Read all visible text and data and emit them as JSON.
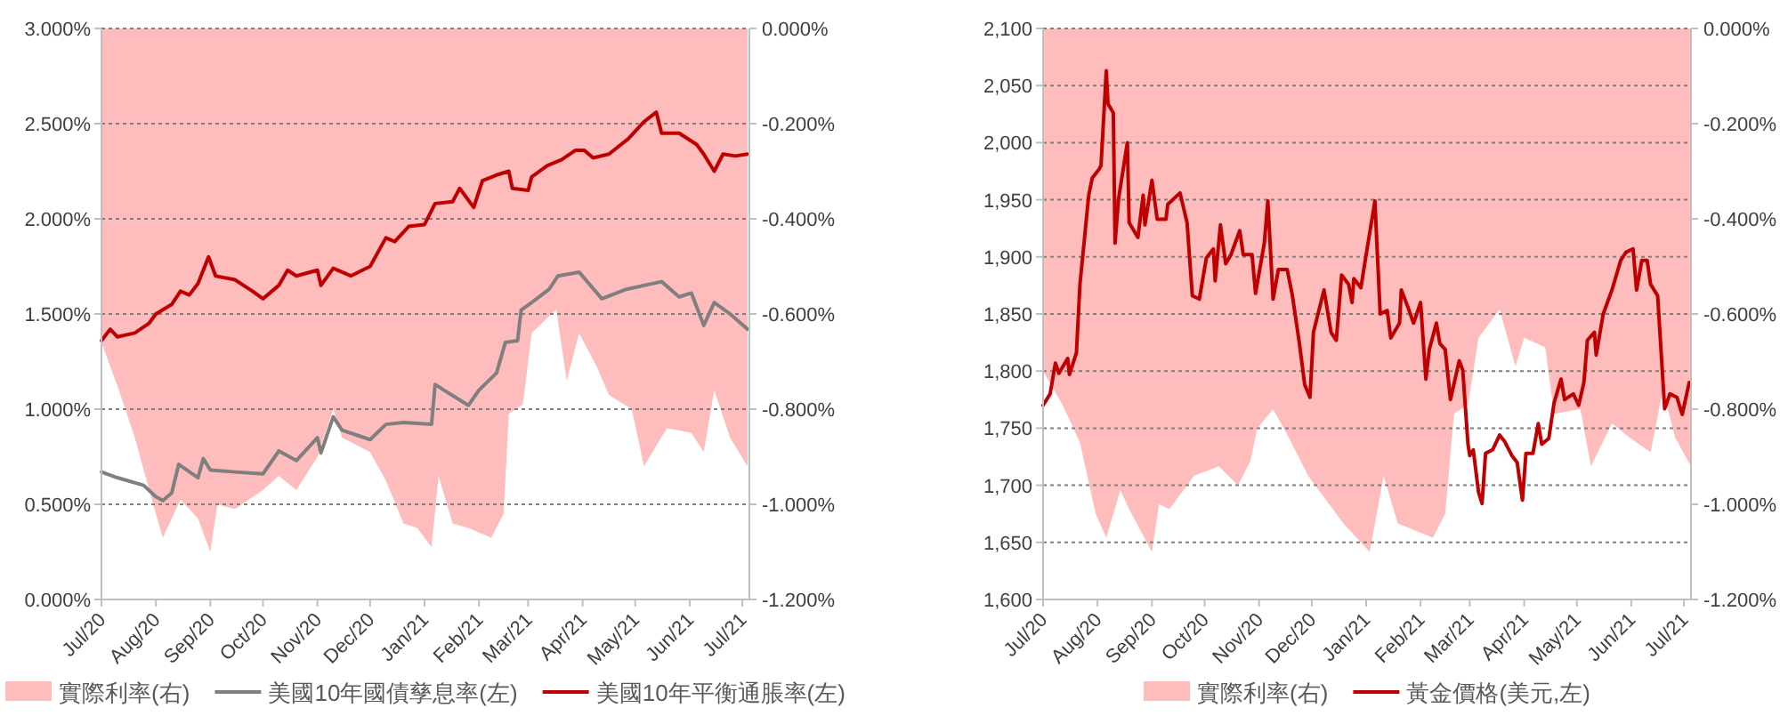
{
  "chart_data": [
    {
      "type": "line",
      "xlim": [
        "2020-07-01",
        "2021-07-05"
      ],
      "xticks": [
        {
          "value": "2020-07-01",
          "label": "Jul/20"
        },
        {
          "value": "2020-08-01",
          "label": "Aug/20"
        },
        {
          "value": "2020-09-01",
          "label": "Sep/20"
        },
        {
          "value": "2020-10-01",
          "label": "Oct/20"
        },
        {
          "value": "2020-11-01",
          "label": "Nov/20"
        },
        {
          "value": "2020-12-01",
          "label": "Dec/20"
        },
        {
          "value": "2021-01-01",
          "label": "Jan/21"
        },
        {
          "value": "2021-02-01",
          "label": "Feb/21"
        },
        {
          "value": "2021-03-01",
          "label": "Mar/21"
        },
        {
          "value": "2021-04-01",
          "label": "Apr/21"
        },
        {
          "value": "2021-05-01",
          "label": "May/21"
        },
        {
          "value": "2021-06-01",
          "label": "Jun/21"
        },
        {
          "value": "2021-07-01",
          "label": "Jul/21"
        }
      ],
      "ylim": [
        0,
        3
      ],
      "yticks": [
        {
          "value": 0,
          "label": "0.000%"
        },
        {
          "value": 0.5,
          "label": "0.500%"
        },
        {
          "value": 1,
          "label": "1.000%"
        },
        {
          "value": 1.5,
          "label": "1.500%"
        },
        {
          "value": 2,
          "label": "2.000%"
        },
        {
          "value": 2.5,
          "label": "2.500%"
        },
        {
          "value": 3,
          "label": "3.000%"
        }
      ],
      "y2lim": [
        -1.2,
        0
      ],
      "y2ticks": [
        {
          "value": -1.2,
          "label": "-1.200%"
        },
        {
          "value": -1,
          "label": "-1.000%"
        },
        {
          "value": -0.8,
          "label": "-0.800%"
        },
        {
          "value": -0.6,
          "label": "-0.600%"
        },
        {
          "value": -0.4,
          "label": "-0.400%"
        },
        {
          "value": -0.2,
          "label": "-0.200%"
        },
        {
          "value": 0,
          "label": "0.000%"
        }
      ],
      "grid": "y",
      "legend": "bottom",
      "series": [
        {
          "name": "實際利率(右)",
          "type": "area",
          "axis": "y2",
          "color": "#ffbcbc",
          "x": [
            "2020-07-01",
            "2020-07-10",
            "2020-07-20",
            "2020-08-01",
            "2020-08-05",
            "2020-08-10",
            "2020-08-15",
            "2020-08-25",
            "2020-09-01",
            "2020-09-05",
            "2020-09-15",
            "2020-10-01",
            "2020-10-10",
            "2020-10-20",
            "2020-11-01",
            "2020-11-10",
            "2020-11-15",
            "2020-12-01",
            "2020-12-10",
            "2020-12-20",
            "2020-12-28",
            "2021-01-05",
            "2021-01-09",
            "2021-01-17",
            "2021-01-26",
            "2021-02-08",
            "2021-02-15",
            "2021-02-18",
            "2021-02-26",
            "2021-03-03",
            "2021-03-17",
            "2021-03-23",
            "2021-03-30",
            "2021-04-09",
            "2021-04-16",
            "2021-04-29",
            "2021-05-06",
            "2021-05-19",
            "2021-06-02",
            "2021-06-09",
            "2021-06-15",
            "2021-06-24",
            "2021-07-04"
          ],
          "values": [
            -0.66,
            -0.75,
            -0.86,
            -1.02,
            -1.07,
            -1.03,
            -0.99,
            -1.03,
            -1.1,
            -1.0,
            -1.01,
            -0.97,
            -0.94,
            -0.97,
            -0.9,
            -0.8,
            -0.86,
            -0.89,
            -0.95,
            -1.04,
            -1.05,
            -1.09,
            -0.94,
            -1.04,
            -1.05,
            -1.07,
            -1.02,
            -0.81,
            -0.79,
            -0.64,
            -0.59,
            -0.74,
            -0.64,
            -0.71,
            -0.77,
            -0.8,
            -0.92,
            -0.84,
            -0.85,
            -0.89,
            -0.76,
            -0.86,
            -0.92
          ]
        },
        {
          "name": "美國10年國債孳息率(左)",
          "type": "line",
          "color": "#7f7f7f",
          "x": [
            "2020-07-01",
            "2020-07-10",
            "2020-07-25",
            "2020-08-01",
            "2020-08-05",
            "2020-08-10",
            "2020-08-14",
            "2020-08-25",
            "2020-08-28",
            "2020-09-01",
            "2020-09-15",
            "2020-10-01",
            "2020-10-10",
            "2020-10-20",
            "2020-11-01",
            "2020-11-03",
            "2020-11-10",
            "2020-11-15",
            "2020-12-01",
            "2020-12-10",
            "2020-12-20",
            "2021-01-05",
            "2021-01-07",
            "2021-01-12",
            "2021-01-26",
            "2021-02-01",
            "2021-02-11",
            "2021-02-16",
            "2021-02-23",
            "2021-02-25",
            "2021-03-03",
            "2021-03-13",
            "2021-03-18",
            "2021-03-30",
            "2021-04-12",
            "2021-04-26",
            "2021-05-16",
            "2021-05-26",
            "2021-06-02",
            "2021-06-09",
            "2021-06-15",
            "2021-06-24",
            "2021-07-04"
          ],
          "values": [
            0.67,
            0.64,
            0.6,
            0.54,
            0.52,
            0.56,
            0.71,
            0.64,
            0.74,
            0.68,
            0.67,
            0.66,
            0.78,
            0.73,
            0.85,
            0.77,
            0.96,
            0.89,
            0.84,
            0.92,
            0.93,
            0.92,
            1.13,
            1.1,
            1.02,
            1.1,
            1.19,
            1.35,
            1.36,
            1.52,
            1.56,
            1.63,
            1.7,
            1.72,
            1.58,
            1.63,
            1.67,
            1.59,
            1.61,
            1.44,
            1.56,
            1.5,
            1.42
          ]
        },
        {
          "name": "美國10年平衡通脹率(左)",
          "type": "line",
          "color": "#c00000",
          "x": [
            "2020-07-01",
            "2020-07-06",
            "2020-07-10",
            "2020-07-20",
            "2020-07-28",
            "2020-08-01",
            "2020-08-10",
            "2020-08-15",
            "2020-08-20",
            "2020-08-25",
            "2020-08-31",
            "2020-09-04",
            "2020-09-15",
            "2020-09-25",
            "2020-10-01",
            "2020-10-10",
            "2020-10-15",
            "2020-10-20",
            "2020-11-01",
            "2020-11-03",
            "2020-11-10",
            "2020-11-20",
            "2020-12-01",
            "2020-12-10",
            "2020-12-15",
            "2020-12-23",
            "2021-01-01",
            "2021-01-07",
            "2021-01-17",
            "2021-01-21",
            "2021-01-29",
            "2021-02-03",
            "2021-02-11",
            "2021-02-18",
            "2021-02-20",
            "2021-03-01",
            "2021-03-03",
            "2021-03-12",
            "2021-03-20",
            "2021-03-28",
            "2021-04-02",
            "2021-04-07",
            "2021-04-16",
            "2021-04-27",
            "2021-05-06",
            "2021-05-13",
            "2021-05-16",
            "2021-05-26",
            "2021-06-05",
            "2021-06-09",
            "2021-06-15",
            "2021-06-20",
            "2021-06-27",
            "2021-07-04"
          ],
          "values": [
            1.36,
            1.42,
            1.38,
            1.4,
            1.45,
            1.5,
            1.55,
            1.62,
            1.6,
            1.66,
            1.8,
            1.7,
            1.68,
            1.62,
            1.58,
            1.65,
            1.73,
            1.7,
            1.73,
            1.65,
            1.74,
            1.7,
            1.75,
            1.9,
            1.88,
            1.96,
            1.97,
            2.08,
            2.09,
            2.16,
            2.06,
            2.2,
            2.23,
            2.25,
            2.16,
            2.15,
            2.22,
            2.28,
            2.31,
            2.36,
            2.36,
            2.32,
            2.34,
            2.42,
            2.51,
            2.56,
            2.45,
            2.45,
            2.39,
            2.34,
            2.25,
            2.34,
            2.33,
            2.34
          ]
        }
      ]
    },
    {
      "type": "line",
      "xlim": [
        "2020-07-01",
        "2021-07-05"
      ],
      "xticks": [
        {
          "value": "2020-07-01",
          "label": "Jul/20"
        },
        {
          "value": "2020-08-01",
          "label": "Aug/20"
        },
        {
          "value": "2020-09-01",
          "label": "Sep/20"
        },
        {
          "value": "2020-10-01",
          "label": "Oct/20"
        },
        {
          "value": "2020-11-01",
          "label": "Nov/20"
        },
        {
          "value": "2020-12-01",
          "label": "Dec/20"
        },
        {
          "value": "2021-01-01",
          "label": "Jan/21"
        },
        {
          "value": "2021-02-01",
          "label": "Feb/21"
        },
        {
          "value": "2021-03-01",
          "label": "Mar/21"
        },
        {
          "value": "2021-04-01",
          "label": "Apr/21"
        },
        {
          "value": "2021-05-01",
          "label": "May/21"
        },
        {
          "value": "2021-06-01",
          "label": "Jun/21"
        },
        {
          "value": "2021-07-01",
          "label": "Jul/21"
        }
      ],
      "ylim": [
        1600,
        2100
      ],
      "yticks": [
        {
          "value": 1600,
          "label": "1,600"
        },
        {
          "value": 1650,
          "label": "1,650"
        },
        {
          "value": 1700,
          "label": "1,700"
        },
        {
          "value": 1750,
          "label": "1,750"
        },
        {
          "value": 1800,
          "label": "1,800"
        },
        {
          "value": 1850,
          "label": "1,850"
        },
        {
          "value": 1900,
          "label": "1,900"
        },
        {
          "value": 1950,
          "label": "1,950"
        },
        {
          "value": 2000,
          "label": "2,000"
        },
        {
          "value": 2050,
          "label": "2,050"
        },
        {
          "value": 2100,
          "label": "2,100"
        }
      ],
      "y2lim": [
        -1.2,
        0
      ],
      "y2ticks": [
        {
          "value": -1.2,
          "label": "-1.200%"
        },
        {
          "value": -1,
          "label": "-1.000%"
        },
        {
          "value": -0.8,
          "label": "-0.800%"
        },
        {
          "value": -0.6,
          "label": "-0.600%"
        },
        {
          "value": -0.4,
          "label": "-0.400%"
        },
        {
          "value": -0.2,
          "label": "-0.200%"
        },
        {
          "value": 0,
          "label": "0.000%"
        }
      ],
      "grid": "y",
      "legend": "bottom",
      "series": [
        {
          "name": "實際利率(右)",
          "type": "area",
          "axis": "y2",
          "color": "#ffbcbc",
          "x": [
            "2020-07-01",
            "2020-07-12",
            "2020-07-22",
            "2020-07-31",
            "2020-08-06",
            "2020-08-14",
            "2020-08-19",
            "2020-09-01",
            "2020-09-05",
            "2020-09-11",
            "2020-09-25",
            "2020-10-09",
            "2020-10-20",
            "2020-10-27",
            "2020-10-31",
            "2020-11-09",
            "2020-11-18",
            "2020-11-29",
            "2020-12-13",
            "2020-12-19",
            "2021-01-03",
            "2021-01-11",
            "2021-01-19",
            "2021-02-08",
            "2021-02-15",
            "2021-02-20",
            "2021-02-28",
            "2021-03-06",
            "2021-03-18",
            "2021-03-27",
            "2021-04-01",
            "2021-04-13",
            "2021-04-18",
            "2021-05-03",
            "2021-05-09",
            "2021-05-21",
            "2021-05-31",
            "2021-06-12",
            "2021-06-19",
            "2021-06-26",
            "2021-07-05"
          ],
          "values": [
            -0.72,
            -0.79,
            -0.87,
            -1.02,
            -1.07,
            -0.97,
            -1.01,
            -1.1,
            -1.0,
            -1.01,
            -0.94,
            -0.92,
            -0.96,
            -0.91,
            -0.84,
            -0.8,
            -0.86,
            -0.94,
            -1.01,
            -1.04,
            -1.1,
            -0.94,
            -1.04,
            -1.07,
            -1.02,
            -0.81,
            -0.79,
            -0.65,
            -0.59,
            -0.71,
            -0.65,
            -0.67,
            -0.81,
            -0.8,
            -0.92,
            -0.83,
            -0.86,
            -0.89,
            -0.76,
            -0.86,
            -0.92
          ]
        },
        {
          "name": "黃金價格(美元,左)",
          "type": "line",
          "color": "#c00000",
          "x": [
            "2020-07-01",
            "2020-07-05",
            "2020-07-08",
            "2020-07-10",
            "2020-07-15",
            "2020-07-16",
            "2020-07-20",
            "2020-07-22",
            "2020-07-27",
            "2020-07-29",
            "2020-08-02",
            "2020-08-03",
            "2020-08-06",
            "2020-08-07",
            "2020-08-10",
            "2020-08-11",
            "2020-08-13",
            "2020-08-18",
            "2020-08-19",
            "2020-08-24",
            "2020-08-27",
            "2020-08-28",
            "2020-09-01",
            "2020-09-04",
            "2020-09-09",
            "2020-09-10",
            "2020-09-17",
            "2020-09-21",
            "2020-09-24",
            "2020-09-28",
            "2020-10-02",
            "2020-10-06",
            "2020-10-07",
            "2020-10-10",
            "2020-10-13",
            "2020-10-16",
            "2020-10-21",
            "2020-10-23",
            "2020-10-28",
            "2020-10-30",
            "2020-11-04",
            "2020-11-06",
            "2020-11-09",
            "2020-11-12",
            "2020-11-17",
            "2020-11-20",
            "2020-11-24",
            "2020-11-27",
            "2020-11-30",
            "2020-12-02",
            "2020-12-08",
            "2020-12-12",
            "2020-12-15",
            "2020-12-18",
            "2020-12-22",
            "2020-12-24",
            "2020-12-25",
            "2020-12-29",
            "2021-01-01",
            "2021-01-06",
            "2021-01-07",
            "2021-01-09",
            "2021-01-13",
            "2021-01-15",
            "2021-01-20",
            "2021-01-21",
            "2021-01-25",
            "2021-01-28",
            "2021-02-01",
            "2021-02-04",
            "2021-02-06",
            "2021-02-10",
            "2021-02-12",
            "2021-02-15",
            "2021-02-18",
            "2021-02-23",
            "2021-02-25",
            "2021-02-28",
            "2021-03-01",
            "2021-03-03",
            "2021-03-06",
            "2021-03-08",
            "2021-03-10",
            "2021-03-14",
            "2021-03-18",
            "2021-03-21",
            "2021-03-25",
            "2021-03-28",
            "2021-03-31",
            "2021-04-02",
            "2021-04-06",
            "2021-04-09",
            "2021-04-11",
            "2021-04-15",
            "2021-04-18",
            "2021-04-22",
            "2021-04-24",
            "2021-04-29",
            "2021-05-02",
            "2021-05-05",
            "2021-05-07",
            "2021-05-11",
            "2021-05-12",
            "2021-05-16",
            "2021-05-21",
            "2021-05-26",
            "2021-05-29",
            "2021-06-02",
            "2021-06-04",
            "2021-06-07",
            "2021-06-10",
            "2021-06-12",
            "2021-06-16",
            "2021-06-20",
            "2021-06-23",
            "2021-06-27",
            "2021-06-30",
            "2021-07-04"
          ],
          "values": [
            1770,
            1780,
            1807,
            1798,
            1811,
            1797,
            1816,
            1876,
            1954,
            1969,
            1977,
            1980,
            2063,
            2034,
            2026,
            1912,
            1951,
            2000,
            1930,
            1917,
            1954,
            1928,
            1967,
            1933,
            1933,
            1946,
            1956,
            1930,
            1866,
            1863,
            1899,
            1907,
            1879,
            1928,
            1894,
            1902,
            1923,
            1902,
            1902,
            1868,
            1912,
            1949,
            1863,
            1889,
            1889,
            1866,
            1824,
            1788,
            1777,
            1834,
            1871,
            1834,
            1827,
            1884,
            1876,
            1860,
            1881,
            1873,
            1902,
            1949,
            1915,
            1850,
            1853,
            1829,
            1842,
            1871,
            1855,
            1842,
            1860,
            1793,
            1819,
            1842,
            1824,
            1819,
            1775,
            1809,
            1801,
            1736,
            1726,
            1731,
            1694,
            1684,
            1728,
            1731,
            1744,
            1738,
            1726,
            1720,
            1687,
            1728,
            1728,
            1754,
            1736,
            1741,
            1772,
            1793,
            1775,
            1780,
            1770,
            1790,
            1827,
            1834,
            1814,
            1850,
            1871,
            1897,
            1904,
            1907,
            1871,
            1897,
            1897,
            1876,
            1866,
            1767,
            1780,
            1777,
            1762,
            1790
          ]
        }
      ]
    }
  ]
}
